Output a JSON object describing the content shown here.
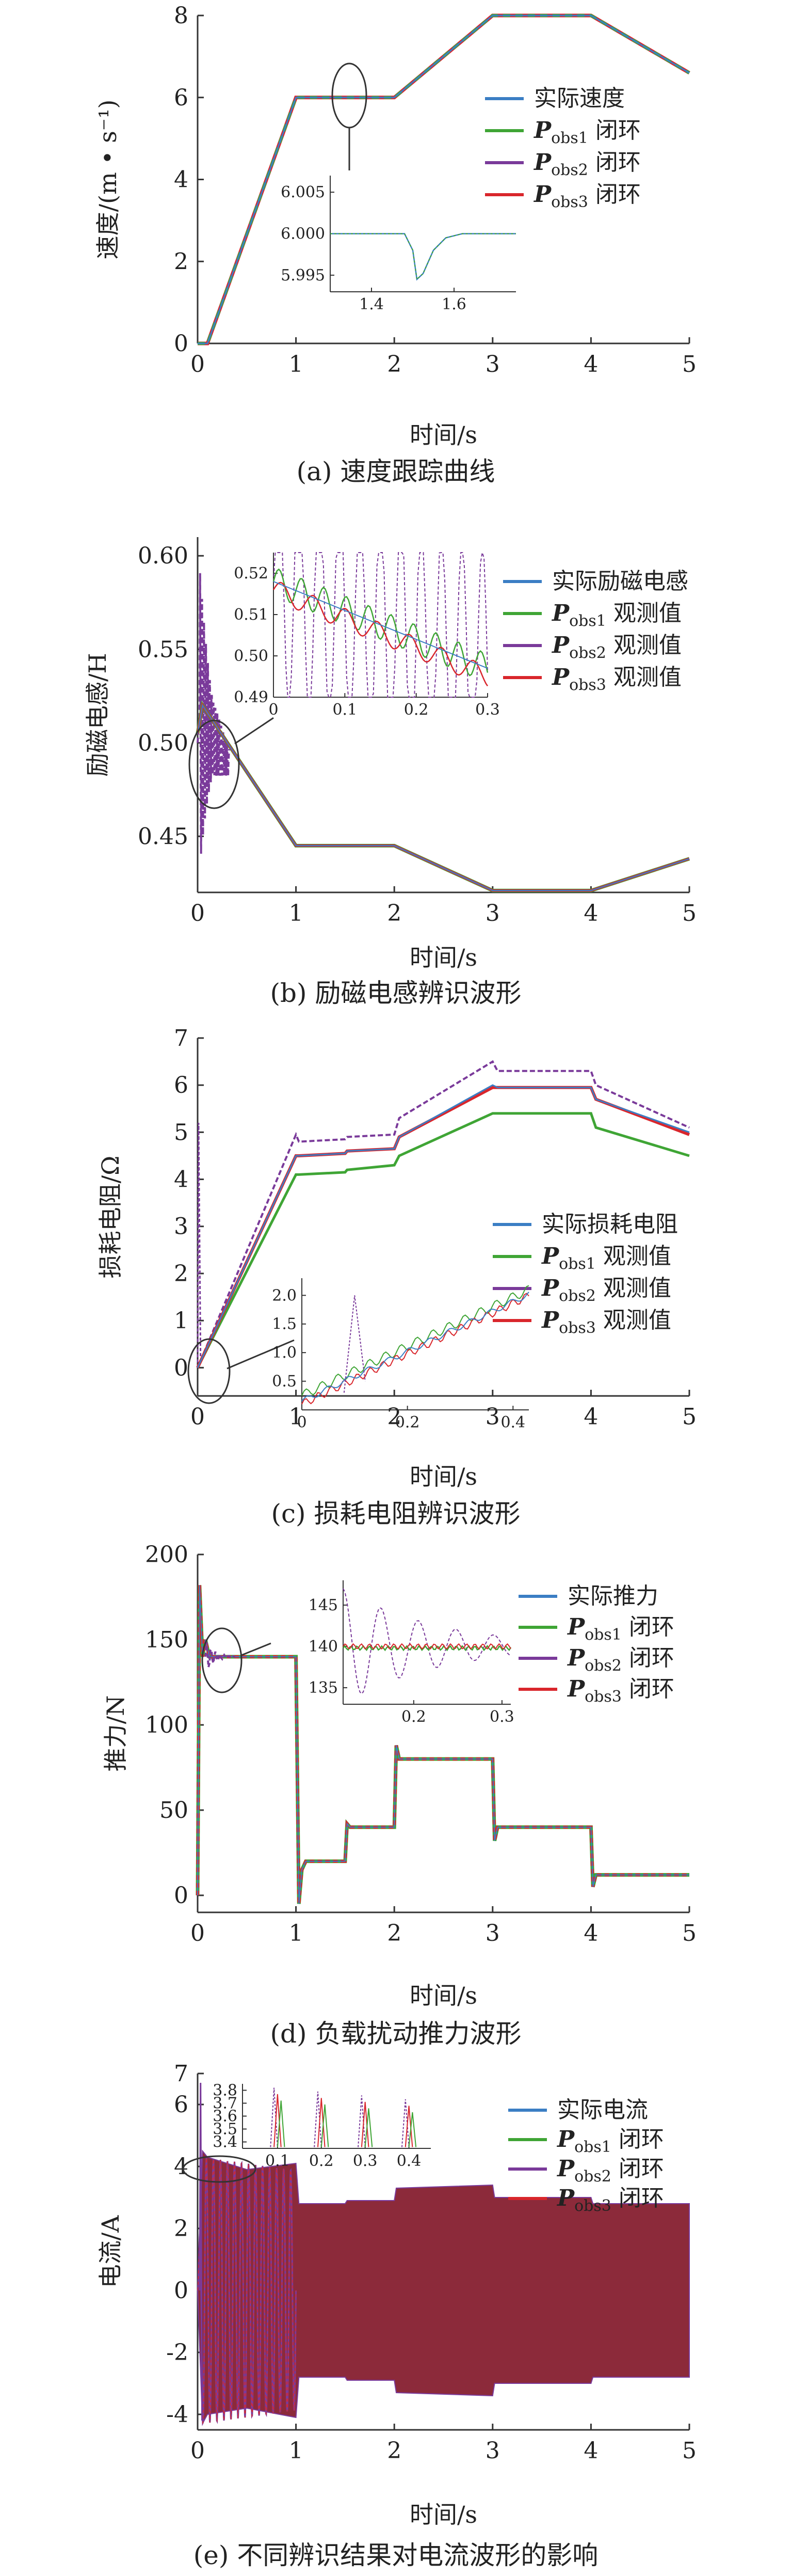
{
  "colors": {
    "actual": "#3b7ec4",
    "pobs1": "#3fa535",
    "pobs2": "#7a3a9a",
    "pobs3": "#d9262c",
    "axis": "#333333",
    "current_fill": "#8c2a3a"
  },
  "chart_data": [
    {
      "type": "line",
      "caption": "(a) 速度跟踪曲线",
      "ylabel": "速度/(m • s⁻¹)",
      "xlabel": "时间/s",
      "xlim": [
        0,
        5
      ],
      "ylim": [
        0,
        8
      ],
      "xticks": [
        "0",
        "1",
        "2",
        "3",
        "4",
        "5"
      ],
      "yticks": [
        "0",
        "2",
        "4",
        "6",
        "8"
      ],
      "legend": {
        "placement": "right",
        "entries": [
          {
            "prefix": "",
            "sym": "",
            "sub": "",
            "suffix": "实际速度",
            "color_key": "actual"
          },
          {
            "prefix": "",
            "sym": "P",
            "sub": "obs1",
            "suffix": " 闭环",
            "color_key": "pobs1"
          },
          {
            "prefix": "",
            "sym": "P",
            "sub": "obs2",
            "suffix": " 闭环",
            "color_key": "pobs2"
          },
          {
            "prefix": "",
            "sym": "P",
            "sub": "obs3",
            "suffix": " 闭环",
            "color_key": "pobs3"
          }
        ]
      },
      "series": [
        {
          "name": "实际速度",
          "x": [
            0,
            0.1,
            1,
            2,
            3,
            4,
            5
          ],
          "y": [
            0,
            0,
            6,
            6,
            8,
            8,
            6.6
          ]
        }
      ],
      "inset": {
        "xlim": [
          1.3,
          1.75
        ],
        "ylim": [
          5.993,
          6.007
        ],
        "xticks": [
          "1.4",
          "1.6"
        ],
        "yticks": [
          "5.995",
          "6.000",
          "6.005"
        ],
        "xtick_values": [
          1.4,
          1.6
        ],
        "ytick_values": [
          5.995,
          6.0,
          6.005
        ],
        "series": {
          "x": [
            1.3,
            1.48,
            1.5,
            1.51,
            1.525,
            1.55,
            1.58,
            1.62,
            1.75
          ],
          "y": [
            6.0,
            6.0,
            5.998,
            5.9945,
            5.9952,
            5.998,
            5.9995,
            6.0,
            6.0
          ]
        }
      }
    },
    {
      "type": "line",
      "caption": "(b) 励磁电感辨识波形",
      "ylabel": "励磁电感/H",
      "xlabel": "时间/s",
      "xlim": [
        0,
        5
      ],
      "ylim": [
        0.42,
        0.61
      ],
      "xticks": [
        "0",
        "1",
        "2",
        "3",
        "4",
        "5"
      ],
      "yticks": [
        "0.45",
        "0.50",
        "0.55",
        "0.60"
      ],
      "ytick_values": [
        0.45,
        0.5,
        0.55,
        0.6
      ],
      "legend": {
        "placement": "right",
        "entries": [
          {
            "sym": "",
            "sub": "",
            "suffix": "实际励磁电感",
            "color_key": "actual"
          },
          {
            "sym": "P",
            "sub": "obs1",
            "suffix": " 观测值",
            "color_key": "pobs1"
          },
          {
            "sym": "P",
            "sub": "obs2",
            "suffix": " 观测值",
            "color_key": "pobs2"
          },
          {
            "sym": "P",
            "sub": "obs3",
            "suffix": " 观测值",
            "color_key": "pobs3"
          }
        ]
      },
      "series": [
        {
          "name": "实际励磁电感",
          "x": [
            0,
            0.05,
            1,
            2,
            3,
            4,
            5
          ],
          "y": [
            0.505,
            0.52,
            0.445,
            0.445,
            0.421,
            0.421,
            0.438
          ]
        }
      ],
      "inset": {
        "xlim": [
          0,
          0.3
        ],
        "ylim": [
          0.49,
          0.525
        ],
        "xticks": [
          "0",
          "0.1",
          "0.2",
          "0.3"
        ],
        "yticks": [
          "0.49",
          "0.50",
          "0.51",
          "0.52"
        ],
        "xtick_values": [
          0,
          0.1,
          0.2,
          0.3
        ],
        "ytick_values": [
          0.49,
          0.5,
          0.51,
          0.52
        ]
      }
    },
    {
      "type": "line",
      "caption": "(c) 损耗电阻辨识波形",
      "ylabel": "损耗电阻/Ω",
      "xlabel": "时间/s",
      "xlim": [
        0,
        5
      ],
      "ylim": [
        -0.6,
        7
      ],
      "xticks": [
        "0",
        "1",
        "2",
        "3",
        "4",
        "5"
      ],
      "yticks": [
        "0",
        "1",
        "2",
        "3",
        "4",
        "5",
        "6",
        "7"
      ],
      "legend": {
        "placement": "right",
        "entries": [
          {
            "sym": "",
            "sub": "",
            "suffix": "实际损耗电阻",
            "color_key": "actual"
          },
          {
            "sym": "P",
            "sub": "obs1",
            "suffix": " 观测值",
            "color_key": "pobs1"
          },
          {
            "sym": "P",
            "sub": "obs2",
            "suffix": " 观测值",
            "color_key": "pobs2"
          },
          {
            "sym": "P",
            "sub": "obs3",
            "suffix": " 观测值",
            "color_key": "pobs3"
          }
        ]
      },
      "series": [
        {
          "name": "实际损耗电阻",
          "x": [
            0,
            1,
            1.03,
            1.5,
            1.52,
            2,
            2.05,
            3,
            3.05,
            4,
            4.05,
            5
          ],
          "y": [
            0,
            4.5,
            4.5,
            4.55,
            4.6,
            4.65,
            4.9,
            6.0,
            5.95,
            5.95,
            5.7,
            5.0
          ]
        },
        {
          "name": "Pobs1 观测值",
          "x": [
            0,
            1,
            1.03,
            1.5,
            1.52,
            2,
            2.05,
            3,
            3.05,
            4,
            4.05,
            5
          ],
          "y": [
            0,
            4.1,
            4.1,
            4.15,
            4.2,
            4.3,
            4.5,
            5.4,
            5.4,
            5.4,
            5.1,
            4.5
          ]
        },
        {
          "name": "Pobs2 观测值",
          "x": [
            0,
            1,
            1.03,
            1.5,
            1.52,
            2,
            2.05,
            3,
            3.05,
            4,
            4.05,
            5
          ],
          "y": [
            0,
            4.95,
            4.8,
            4.85,
            4.9,
            4.95,
            5.3,
            6.5,
            6.3,
            6.3,
            6.0,
            5.1
          ]
        },
        {
          "name": "Pobs3 观测值",
          "x": [
            0,
            1,
            1.03,
            1.5,
            1.52,
            2,
            2.05,
            3,
            3.05,
            4,
            4.05,
            5
          ],
          "y": [
            0,
            4.5,
            4.5,
            4.55,
            4.6,
            4.65,
            4.9,
            5.95,
            5.95,
            5.95,
            5.7,
            4.95
          ]
        }
      ],
      "inset": {
        "xlim": [
          0,
          0.43
        ],
        "ylim": [
          0,
          2.3
        ],
        "xticks": [
          "0",
          "0.2",
          "0.4"
        ],
        "yticks": [
          "0.5",
          "1.0",
          "1.5",
          "2.0"
        ],
        "xtick_values": [
          0,
          0.2,
          0.4
        ],
        "ytick_values": [
          0.5,
          1.0,
          1.5,
          2.0
        ]
      }
    },
    {
      "type": "line",
      "caption": "(d) 负载扰动推力波形",
      "ylabel": "推力/N",
      "xlabel": "时间/s",
      "xlim": [
        0,
        5
      ],
      "ylim": [
        -10,
        200
      ],
      "xticks": [
        "0",
        "1",
        "2",
        "3",
        "4",
        "5"
      ],
      "yticks": [
        "0",
        "50",
        "100",
        "150",
        "200"
      ],
      "legend": {
        "placement": "right",
        "entries": [
          {
            "sym": "",
            "sub": "",
            "suffix": "实际推力",
            "color_key": "actual"
          },
          {
            "sym": "P",
            "sub": "obs1",
            "suffix": " 闭环",
            "color_key": "pobs1"
          },
          {
            "sym": "P",
            "sub": "obs2",
            "suffix": " 闭环",
            "color_key": "pobs2"
          },
          {
            "sym": "P",
            "sub": "obs3",
            "suffix": " 闭环",
            "color_key": "pobs3"
          }
        ]
      },
      "series": [
        {
          "name": "实际推力",
          "x": [
            0,
            0.02,
            0.05,
            0.08,
            0.12,
            1.0,
            1.03,
            1.06,
            1.1,
            1.5,
            1.52,
            1.55,
            2.0,
            2.02,
            2.05,
            3.0,
            3.02,
            3.05,
            4.0,
            4.02,
            4.05,
            5.0
          ],
          "y": [
            0,
            182,
            140,
            150,
            140,
            140,
            -5,
            15,
            20,
            20,
            42,
            40,
            40,
            88,
            80,
            80,
            32,
            40,
            40,
            5,
            12,
            12
          ]
        }
      ],
      "inset": {
        "xlim": [
          0.12,
          0.31
        ],
        "ylim": [
          133,
          148
        ],
        "xticks": [
          "0.2",
          "0.3"
        ],
        "yticks": [
          "135",
          "140",
          "145"
        ],
        "xtick_values": [
          0.2,
          0.3
        ],
        "ytick_values": [
          135,
          140,
          145
        ]
      }
    },
    {
      "type": "line",
      "caption": "(e) 不同辨识结果对电流波形的影响",
      "ylabel": "电流/A",
      "xlabel": "时间/s",
      "xlim": [
        0,
        5
      ],
      "ylim": [
        -4.5,
        7
      ],
      "xticks": [
        "0",
        "1",
        "2",
        "3",
        "4",
        "5"
      ],
      "yticks": [
        "-4",
        "-2",
        "0",
        "2",
        "4",
        "6",
        "7"
      ],
      "ytick_values": [
        -4,
        -2,
        0,
        2,
        4,
        6,
        7
      ],
      "legend": {
        "placement": "top-right",
        "entries": [
          {
            "sym": "",
            "sub": "",
            "suffix": "实际电流",
            "color_key": "actual"
          },
          {
            "sym": "P",
            "sub": "obs1",
            "suffix": " 闭环",
            "color_key": "pobs1"
          },
          {
            "sym": "P",
            "sub": "obs2",
            "suffix": " 闭环",
            "color_key": "pobs2"
          },
          {
            "sym": "P",
            "sub": "obs3",
            "suffix": " 闭环",
            "color_key": "pobs3"
          }
        ]
      },
      "envelope": {
        "x": [
          0,
          0.05,
          0.1,
          0.5,
          1.0,
          1.03,
          1.5,
          1.52,
          2.0,
          2.02,
          3.0,
          3.02,
          4.0,
          4.02,
          5.0
        ],
        "upper": [
          0,
          4.5,
          4.3,
          3.9,
          4.1,
          2.8,
          2.8,
          2.9,
          2.9,
          3.3,
          3.4,
          3.0,
          3.0,
          2.8,
          2.8
        ],
        "lower": [
          0,
          -4.3,
          -4.0,
          -3.8,
          -4.1,
          -2.8,
          -2.8,
          -2.9,
          -2.9,
          -3.3,
          -3.4,
          -3.0,
          -3.0,
          -2.8,
          -2.8
        ]
      },
      "inset": {
        "xlim": [
          0.02,
          0.45
        ],
        "ylim": [
          3.35,
          3.85
        ],
        "xticks": [
          "0.1",
          "0.2",
          "0.3",
          "0.4"
        ],
        "yticks": [
          "3.4",
          "3.5",
          "3.6",
          "3.7",
          "3.8"
        ],
        "xtick_values": [
          0.1,
          0.2,
          0.3,
          0.4
        ],
        "ytick_values": [
          3.4,
          3.5,
          3.6,
          3.7,
          3.8
        ]
      }
    }
  ]
}
